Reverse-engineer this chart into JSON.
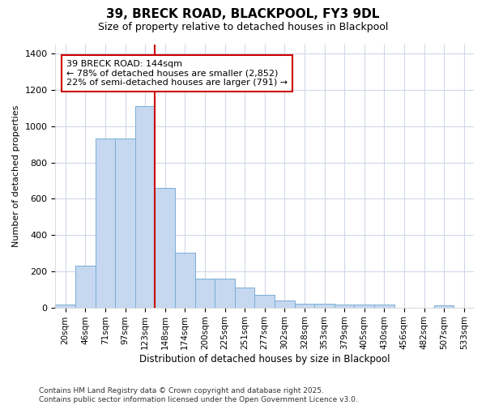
{
  "title": "39, BRECK ROAD, BLACKPOOL, FY3 9DL",
  "subtitle": "Size of property relative to detached houses in Blackpool",
  "xlabel": "Distribution of detached houses by size in Blackpool",
  "ylabel": "Number of detached properties",
  "categories": [
    "20sqm",
    "46sqm",
    "71sqm",
    "97sqm",
    "123sqm",
    "148sqm",
    "174sqm",
    "200sqm",
    "225sqm",
    "251sqm",
    "277sqm",
    "302sqm",
    "328sqm",
    "353sqm",
    "379sqm",
    "405sqm",
    "430sqm",
    "456sqm",
    "482sqm",
    "507sqm",
    "533sqm"
  ],
  "values": [
    15,
    232,
    930,
    930,
    1110,
    660,
    300,
    160,
    160,
    110,
    70,
    40,
    22,
    22,
    18,
    18,
    15,
    0,
    0,
    12,
    0
  ],
  "bar_color": "#c5d8f0",
  "bar_edge_color": "#7aadd4",
  "vline_x_index": 5,
  "vline_color": "#cc0000",
  "annotation_text": "39 BRECK ROAD: 144sqm\n← 78% of detached houses are smaller (2,852)\n22% of semi-detached houses are larger (791) →",
  "annotation_box_color": "#cc0000",
  "background_color": "#ffffff",
  "grid_color": "#d0d8e8",
  "footnote": "Contains HM Land Registry data © Crown copyright and database right 2025.\nContains public sector information licensed under the Open Government Licence v3.0.",
  "ylim": [
    0,
    1450
  ],
  "yticks": [
    0,
    200,
    400,
    600,
    800,
    1000,
    1200,
    1400
  ],
  "figsize": [
    6.0,
    5.0
  ],
  "dpi": 100
}
